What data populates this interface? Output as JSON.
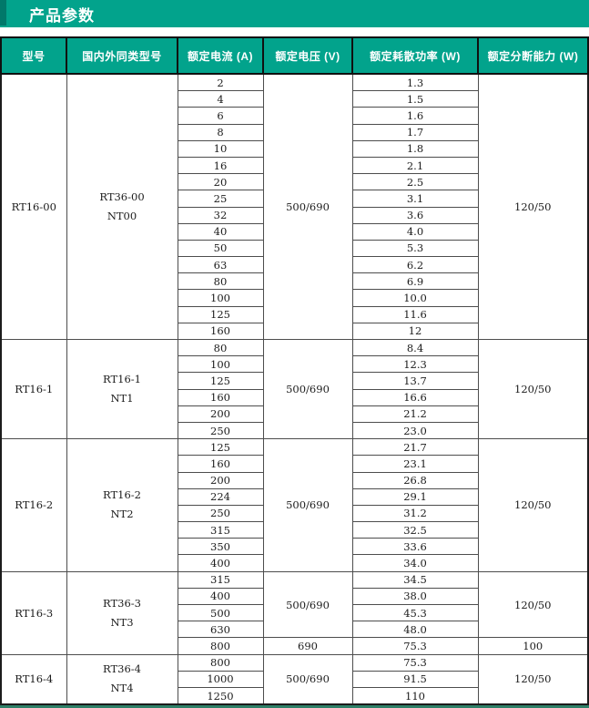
{
  "header_bar": {
    "title": "产品参数"
  },
  "colors": {
    "accent_teal": "#02a38c",
    "accent_teal_dark": "#01786a",
    "header_text": "#ffffff",
    "cell_border": "#4d4d4d",
    "bottom_strip_green": "#2e8068"
  },
  "table": {
    "columns": [
      "型号",
      "国内外同类型号",
      "额定电流 (A)",
      "额定电压 (V)",
      "额定耗散功率 (W)",
      "额定分断能力 (W)"
    ],
    "groups": [
      {
        "model": "RT16-00",
        "equivalent": [
          "RT36-00",
          "NT00"
        ],
        "currents": [
          "2",
          "4",
          "6",
          "8",
          "10",
          "16",
          "20",
          "25",
          "32",
          "40",
          "50",
          "63",
          "80",
          "100",
          "125",
          "160"
        ],
        "powers": [
          "1.3",
          "1.5",
          "1.6",
          "1.7",
          "1.8",
          "2.1",
          "2.5",
          "3.1",
          "3.6",
          "4.0",
          "5.3",
          "6.2",
          "6.9",
          "10.0",
          "11.6",
          "12"
        ],
        "segments": [
          {
            "rows": 16,
            "voltage": "500/690",
            "breaking": "120/50"
          }
        ]
      },
      {
        "model": "RT16-1",
        "equivalent": [
          "RT16-1",
          "NT1"
        ],
        "currents": [
          "80",
          "100",
          "125",
          "160",
          "200",
          "250"
        ],
        "powers": [
          "8.4",
          "12.3",
          "13.7",
          "16.6",
          "21.2",
          "23.0"
        ],
        "segments": [
          {
            "rows": 6,
            "voltage": "500/690",
            "breaking": "120/50"
          }
        ]
      },
      {
        "model": "RT16-2",
        "equivalent": [
          "RT16-2",
          "NT2"
        ],
        "currents": [
          "125",
          "160",
          "200",
          "224",
          "250",
          "315",
          "350",
          "400"
        ],
        "powers": [
          "21.7",
          "23.1",
          "26.8",
          "29.1",
          "31.2",
          "32.5",
          "33.6",
          "34.0"
        ],
        "segments": [
          {
            "rows": 8,
            "voltage": "500/690",
            "breaking": "120/50"
          }
        ]
      },
      {
        "model": "RT16-3",
        "equivalent": [
          "RT36-3",
          "NT3"
        ],
        "currents": [
          "315",
          "400",
          "500",
          "630",
          "800"
        ],
        "powers": [
          "34.5",
          "38.0",
          "45.3",
          "48.0",
          "75.3"
        ],
        "segments": [
          {
            "rows": 4,
            "voltage": "500/690",
            "breaking": "120/50"
          },
          {
            "rows": 1,
            "voltage": "690",
            "breaking": "100"
          }
        ]
      },
      {
        "model": "RT16-4",
        "equivalent": [
          "RT36-4",
          "NT4"
        ],
        "currents": [
          "800",
          "1000",
          "1250"
        ],
        "powers": [
          "75.3",
          "91.5",
          "110"
        ],
        "segments": [
          {
            "rows": 3,
            "voltage": "500/690",
            "breaking": "120/50"
          }
        ]
      }
    ]
  }
}
